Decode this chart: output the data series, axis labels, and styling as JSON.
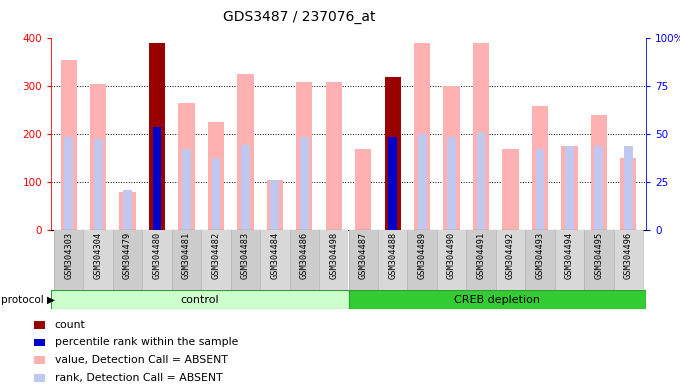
{
  "title": "GDS3487 / 237076_at",
  "samples": [
    "GSM304303",
    "GSM304304",
    "GSM304479",
    "GSM304480",
    "GSM304481",
    "GSM304482",
    "GSM304483",
    "GSM304484",
    "GSM304486",
    "GSM304498",
    "GSM304487",
    "GSM304488",
    "GSM304489",
    "GSM304490",
    "GSM304491",
    "GSM304492",
    "GSM304493",
    "GSM304494",
    "GSM304495",
    "GSM304496"
  ],
  "pink_values": [
    355,
    305,
    80,
    0,
    265,
    225,
    325,
    105,
    310,
    310,
    170,
    0,
    390,
    300,
    390,
    170,
    260,
    175,
    240,
    150
  ],
  "light_blue_vals": [
    195,
    190,
    85,
    215,
    170,
    150,
    178,
    105,
    195,
    0,
    0,
    195,
    200,
    195,
    205,
    0,
    170,
    175,
    175,
    175
  ],
  "red_values": [
    0,
    0,
    0,
    390,
    0,
    0,
    0,
    0,
    0,
    0,
    0,
    320,
    0,
    0,
    0,
    0,
    0,
    0,
    0,
    0
  ],
  "blue_values": [
    0,
    0,
    0,
    215,
    0,
    0,
    0,
    0,
    0,
    0,
    0,
    195,
    0,
    0,
    0,
    0,
    0,
    0,
    0,
    0
  ],
  "control_count": 10,
  "creb_count": 10,
  "ylim_left": [
    0,
    400
  ],
  "ylim_right": [
    0,
    100
  ],
  "yticks_left": [
    0,
    100,
    200,
    300,
    400
  ],
  "yticks_right": [
    0,
    25,
    50,
    75,
    100
  ],
  "ytick_labels_right": [
    "0",
    "25",
    "50",
    "75",
    "100%"
  ],
  "pink_color": "#ffb0b0",
  "light_blue_color": "#c0c8f0",
  "red_color": "#990000",
  "blue_color": "#0000cc",
  "legend_items": [
    {
      "color": "#990000",
      "label": "count"
    },
    {
      "color": "#0000cc",
      "label": "percentile rank within the sample"
    },
    {
      "color": "#ffb0b0",
      "label": "value, Detection Call = ABSENT"
    },
    {
      "color": "#c0c8f0",
      "label": "rank, Detection Call = ABSENT"
    }
  ]
}
